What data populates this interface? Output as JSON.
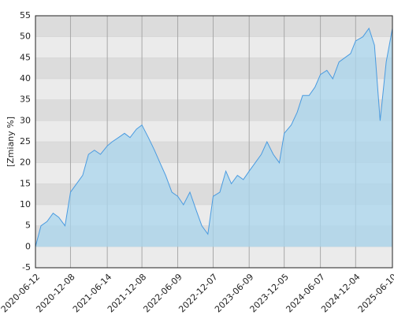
{
  "chart_data": {
    "type": "area",
    "y_label": "[Zmiany %]",
    "x": [
      "2020-06-12",
      "2020-07-10",
      "2020-08-10",
      "2020-09-10",
      "2020-10-09",
      "2020-11-10",
      "2020-12-08",
      "2021-01-08",
      "2021-02-08",
      "2021-03-10",
      "2021-04-09",
      "2021-05-10",
      "2021-06-14",
      "2021-07-09",
      "2021-08-10",
      "2021-09-10",
      "2021-10-08",
      "2021-11-10",
      "2021-12-08",
      "2022-01-10",
      "2022-02-10",
      "2022-03-10",
      "2022-04-08",
      "2022-05-10",
      "2022-06-09",
      "2022-07-08",
      "2022-08-10",
      "2022-09-09",
      "2022-10-10",
      "2022-11-10",
      "2022-12-07",
      "2023-01-10",
      "2023-02-10",
      "2023-03-10",
      "2023-04-10",
      "2023-05-10",
      "2023-06-09",
      "2023-07-10",
      "2023-08-10",
      "2023-09-08",
      "2023-10-10",
      "2023-11-10",
      "2023-12-05",
      "2024-01-10",
      "2024-02-09",
      "2024-03-08",
      "2024-04-10",
      "2024-05-10",
      "2024-06-07",
      "2024-07-10",
      "2024-08-09",
      "2024-09-10",
      "2024-10-10",
      "2024-11-08",
      "2024-12-04",
      "2025-01-10",
      "2025-02-10",
      "2025-03-10",
      "2025-04-08",
      "2025-05-09",
      "2025-06-10"
    ],
    "values": [
      0,
      5,
      6,
      8,
      7,
      5,
      13,
      15,
      17,
      22,
      23,
      22,
      24,
      25,
      26,
      27,
      26,
      28,
      29,
      26,
      23,
      20,
      17,
      13,
      12,
      10,
      13,
      9,
      5,
      3,
      12,
      13,
      18,
      15,
      17,
      16,
      18,
      20,
      22,
      25,
      22,
      20,
      27,
      29,
      32,
      36,
      36,
      38,
      41,
      42,
      40,
      44,
      45,
      46,
      49,
      50,
      52,
      48,
      30,
      44,
      52
    ],
    "color": "#4a9be0",
    "fill": "#a9d6ee",
    "xlim": [
      "2020-06-12",
      "2025-06-10"
    ],
    "xticks": [
      "2020-06-12",
      "2020-12-08",
      "2021-06-14",
      "2021-12-08",
      "2022-06-09",
      "2022-12-07",
      "2023-06-09",
      "2023-12-05",
      "2024-06-07",
      "2024-12-04",
      "2025-06-10"
    ],
    "ylim": [
      -5,
      55
    ],
    "yticks": [
      -5,
      0,
      5,
      10,
      15,
      20,
      25,
      30,
      35,
      40,
      45,
      50,
      55
    ],
    "grid": true
  }
}
